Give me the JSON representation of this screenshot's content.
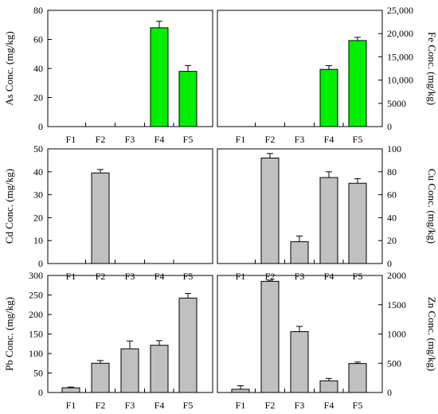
{
  "chart_data": [
    {
      "id": "as",
      "type": "bar",
      "categories": [
        "F1",
        "F2",
        "F3",
        "F4",
        "F5"
      ],
      "values": [
        0,
        0,
        0,
        68,
        38
      ],
      "errors": [
        0,
        0,
        0,
        4.5,
        4
      ],
      "ylabel": "As Conc. (mg/kg)",
      "ylim": [
        0,
        80
      ],
      "yticks": [
        0,
        20,
        40,
        60,
        80
      ],
      "ytick_labels": [
        "0",
        "20",
        "40",
        "60",
        "80"
      ],
      "y_axis_side": "left",
      "bar_color": "#00ee00"
    },
    {
      "id": "fe",
      "type": "bar",
      "categories": [
        "F1",
        "F2",
        "F3",
        "F4",
        "F5"
      ],
      "values": [
        0,
        0,
        0,
        12300,
        18500
      ],
      "errors": [
        0,
        0,
        0,
        800,
        700
      ],
      "ylabel": "Fe Conc. (mg/kg)",
      "ylim": [
        0,
        25000
      ],
      "yticks": [
        0,
        5000,
        10000,
        15000,
        20000,
        25000
      ],
      "ytick_labels": [
        "0",
        "5000",
        "10,000",
        "15,000",
        "20,000",
        "25,000"
      ],
      "y_axis_side": "right",
      "bar_color": "#00ee00"
    },
    {
      "id": "cd",
      "type": "bar",
      "categories": [
        "F1",
        "F2",
        "F3",
        "F4",
        "F5"
      ],
      "values": [
        0,
        39.5,
        0,
        0,
        0
      ],
      "errors": [
        0,
        1.5,
        0,
        0,
        0
      ],
      "ylabel": "Cd Conc. (mg/kg)",
      "ylim": [
        0,
        50
      ],
      "yticks": [
        0,
        10,
        20,
        30,
        40,
        50
      ],
      "ytick_labels": [
        "0",
        "10",
        "20",
        "30",
        "40",
        "50"
      ],
      "y_axis_side": "left",
      "bar_color": "#c0c0c0"
    },
    {
      "id": "cu",
      "type": "bar",
      "categories": [
        "F1",
        "F2",
        "F3",
        "F4",
        "F5"
      ],
      "values": [
        0,
        92,
        19,
        75,
        70
      ],
      "errors": [
        0,
        4,
        5,
        5,
        4
      ],
      "ylabel": "Cu Conc. (mg/kg)",
      "ylim": [
        0,
        100
      ],
      "yticks": [
        0,
        20,
        40,
        60,
        80,
        100
      ],
      "ytick_labels": [
        "0",
        "20",
        "40",
        "60",
        "80",
        "100"
      ],
      "y_axis_side": "right",
      "bar_color": "#c0c0c0"
    },
    {
      "id": "pb",
      "type": "bar",
      "categories": [
        "F1",
        "F2",
        "F3",
        "F4",
        "F5"
      ],
      "values": [
        12,
        75,
        112,
        121,
        242
      ],
      "errors": [
        2,
        7,
        20,
        12,
        12
      ],
      "ylabel": "Pb Conc. (mg/kg)",
      "ylim": [
        0,
        300
      ],
      "yticks": [
        0,
        50,
        100,
        150,
        200,
        250,
        300
      ],
      "ytick_labels": [
        "0",
        "50",
        "100",
        "150",
        "200",
        "250",
        "300"
      ],
      "y_axis_side": "left",
      "bar_color": "#c0c0c0"
    },
    {
      "id": "zn",
      "type": "bar",
      "categories": [
        "F1",
        "F2",
        "F3",
        "F4",
        "F5"
      ],
      "values": [
        55,
        1900,
        1040,
        200,
        495
      ],
      "errors": [
        60,
        20,
        90,
        40,
        25
      ],
      "ylabel": "Zn Conc. (mg/kg)",
      "ylim": [
        0,
        2000
      ],
      "yticks": [
        0,
        500,
        1000,
        1500,
        2000
      ],
      "ytick_labels": [
        "0",
        "500",
        "1000",
        "1500",
        "2000"
      ],
      "y_axis_side": "right",
      "bar_color": "#c0c0c0"
    }
  ]
}
